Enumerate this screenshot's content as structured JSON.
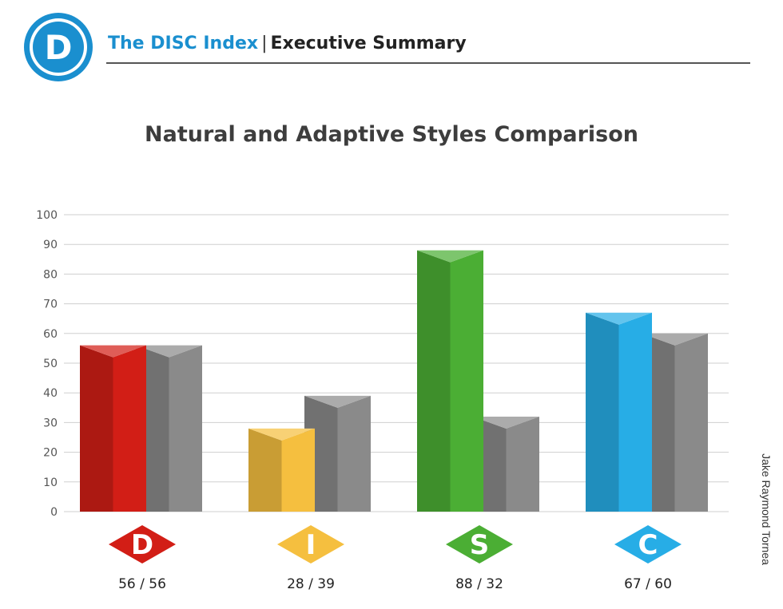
{
  "header": {
    "logo_letter": "D",
    "brand": "The DISC Index",
    "separator": "|",
    "section": "Executive Summary"
  },
  "colors": {
    "brand": "#1a8fcf",
    "natural_gray": "#8a8a8a"
  },
  "chart_data": {
    "type": "bar",
    "title": "Natural and Adaptive Styles Comparison",
    "xlabel": "",
    "ylabel": "",
    "ylim": [
      0,
      100
    ],
    "y_ticks": [
      0,
      10,
      20,
      30,
      40,
      50,
      60,
      70,
      80,
      90,
      100
    ],
    "grid": true,
    "categories": [
      "D",
      "I",
      "S",
      "C"
    ],
    "series": [
      {
        "name": "Adaptive",
        "values": [
          56,
          28,
          88,
          67
        ],
        "colors": [
          "#d21e16",
          "#f5bf3f",
          "#4bae34",
          "#27ade6"
        ]
      },
      {
        "name": "Natural",
        "values": [
          56,
          39,
          32,
          60
        ],
        "color": "#8a8a8a"
      }
    ],
    "value_labels": [
      "56 / 56",
      "28 / 39",
      "88 / 32",
      "67 / 60"
    ]
  },
  "author": "Jake Raymond Tornea"
}
